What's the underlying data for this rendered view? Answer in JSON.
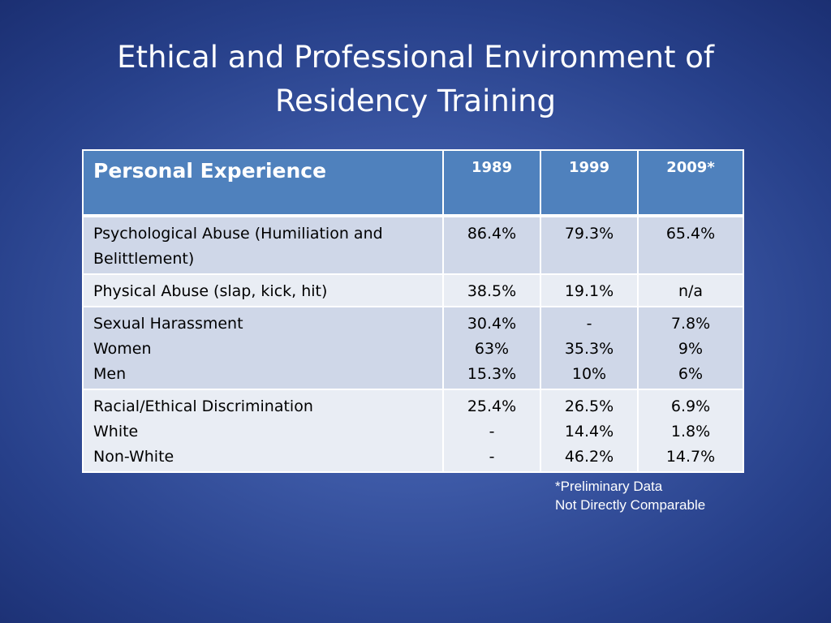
{
  "slide": {
    "title_line1": "Ethical and Professional Environment of",
    "title_line2": "Residency Training"
  },
  "table": {
    "headers": [
      "Personal Experience",
      "1989",
      "1999",
      "2009*"
    ],
    "rows": [
      {
        "label": [
          "Psychological Abuse (Humiliation and",
          "Belittlement)"
        ],
        "y1989": [
          "86.4%"
        ],
        "y1999": [
          "79.3%"
        ],
        "y2009": [
          "65.4%"
        ]
      },
      {
        "label": [
          "Physical Abuse (slap, kick, hit)"
        ],
        "y1989": [
          "38.5%"
        ],
        "y1999": [
          "19.1%"
        ],
        "y2009": [
          "n/a"
        ]
      },
      {
        "label": [
          "Sexual Harassment",
          "Women",
          "Men"
        ],
        "y1989": [
          "30.4%",
          "63%",
          "15.3%"
        ],
        "y1999": [
          "-",
          "35.3%",
          "10%"
        ],
        "y2009": [
          "7.8%",
          "9%",
          "6%"
        ]
      },
      {
        "label": [
          "Racial/Ethical Discrimination",
          "White",
          "Non-White"
        ],
        "y1989": [
          "25.4%",
          "-",
          "-"
        ],
        "y1999": [
          "26.5%",
          "14.4%",
          "46.2%"
        ],
        "y2009": [
          "6.9%",
          "1.8%",
          "14.7%"
        ]
      }
    ]
  },
  "footnote": {
    "line1": "*Preliminary Data",
    "line2": "Not Directly Comparable"
  },
  "colors": {
    "background": "#3c58a5",
    "header_fill": "#4f81bd",
    "row_dark": "#cfd7e8",
    "row_light": "#e9edf4"
  }
}
